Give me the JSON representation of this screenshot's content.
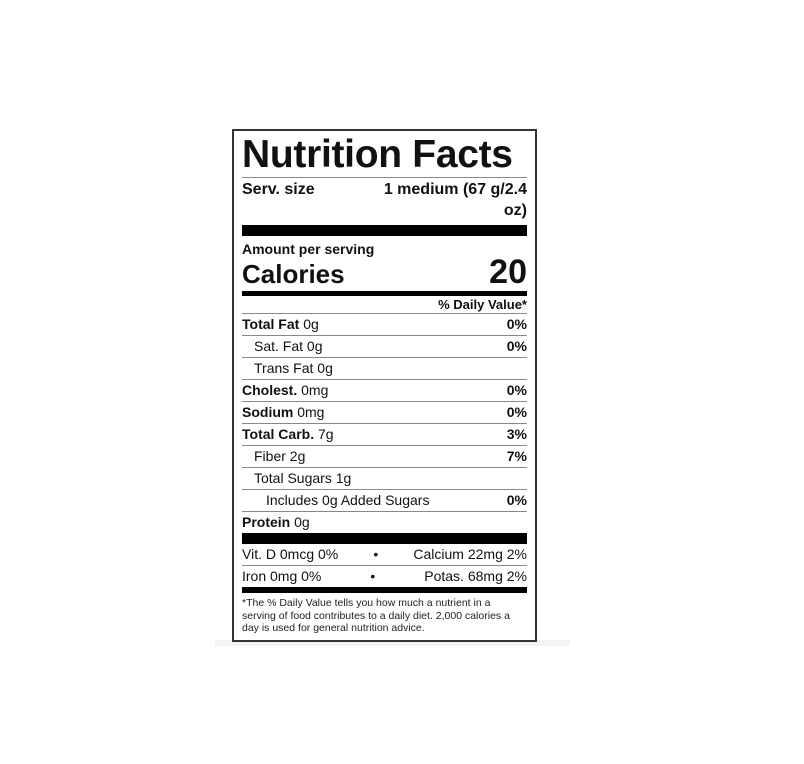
{
  "title": "Nutrition Facts",
  "serving": {
    "label": "Serv. size",
    "value": "1 medium (67 g/2.4 oz)"
  },
  "amount_label": "Amount per serving",
  "calories": {
    "label": "Calories",
    "value": "20"
  },
  "dv_header": "% Daily Value*",
  "nutrients": [
    {
      "name": "Total Fat",
      "amount": "0g",
      "dv": "0%",
      "bold": true,
      "indent": 0
    },
    {
      "name": "Sat. Fat",
      "amount": "0g",
      "dv": "0%",
      "bold": false,
      "indent": 1
    },
    {
      "name": "Trans Fat",
      "amount": "0g",
      "dv": "",
      "bold": false,
      "indent": 1
    },
    {
      "name": "Cholest.",
      "amount": "0mg",
      "dv": "0%",
      "bold": true,
      "indent": 0
    },
    {
      "name": "Sodium",
      "amount": "0mg",
      "dv": "0%",
      "bold": true,
      "indent": 0
    },
    {
      "name": "Total Carb.",
      "amount": "7g",
      "dv": "3%",
      "bold": true,
      "indent": 0
    },
    {
      "name": "Fiber",
      "amount": "2g",
      "dv": "7%",
      "bold": false,
      "indent": 1
    },
    {
      "name": "Total Sugars",
      "amount": "1g",
      "dv": "",
      "bold": false,
      "indent": 1
    },
    {
      "name": "Includes 0g Added Sugars",
      "amount": "",
      "dv": "0%",
      "bold": false,
      "indent": 2
    },
    {
      "name": "Protein",
      "amount": "0g",
      "dv": "",
      "bold": true,
      "indent": 0
    }
  ],
  "vitamins": [
    {
      "left": "Vit. D 0mcg 0%",
      "sep": "•",
      "right": "Calcium 22mg 2%"
    },
    {
      "left": "Iron 0mg 0%",
      "sep": "•",
      "right": "Potas. 68mg 2%"
    }
  ],
  "footnote": "*The % Daily Value tells you how much a nutrient in a serving of food contributes to a daily diet. 2,000 calories a day is used for general nutrition advice."
}
